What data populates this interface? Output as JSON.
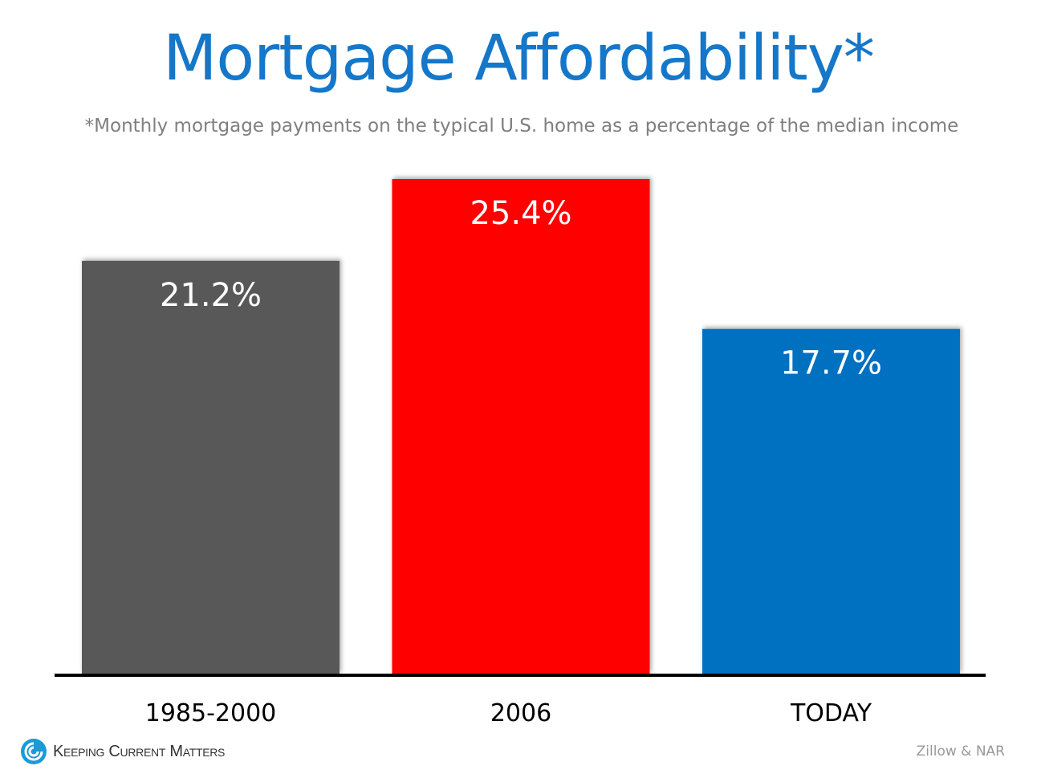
{
  "chart_data": {
    "type": "bar",
    "title": "Mortgage Affordability*",
    "subtitle": "*Monthly mortgage payments on the typical U.S. home as a percentage of the median income",
    "categories": [
      "1985-2000",
      "2006",
      "TODAY"
    ],
    "values": [
      21.2,
      25.4,
      17.7
    ],
    "data_labels": [
      "21.2%",
      "25.4%",
      "17.7%"
    ],
    "colors": [
      "#595959",
      "#ff0000",
      "#0070c0"
    ],
    "xlabel": "",
    "ylabel": "",
    "ylim": [
      0,
      25.4
    ],
    "grid": false,
    "legend": "none"
  },
  "footer": {
    "logo_text": "Keeping Current Matters",
    "source": "Zillow & NAR"
  },
  "colors": {
    "title": "#1477c9",
    "logo": "#1a9ad6"
  }
}
